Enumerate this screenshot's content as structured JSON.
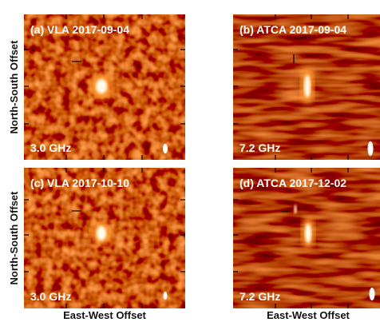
{
  "panels": [
    {
      "title": "(a) VLA 2017-09-04",
      "frequency": "3.0 GHz"
    },
    {
      "title": "(b) ATCA 2017-09-04",
      "frequency": "7.2 GHz"
    },
    {
      "title": "(c) VLA 2017-10-10",
      "frequency": "3.0 GHz"
    },
    {
      "title": "(d) ATCA 2017-12-02",
      "frequency": "7.2 GHz"
    }
  ],
  "y_axis_label": "North-South Offset",
  "x_axis_label": "East-West Offset"
}
